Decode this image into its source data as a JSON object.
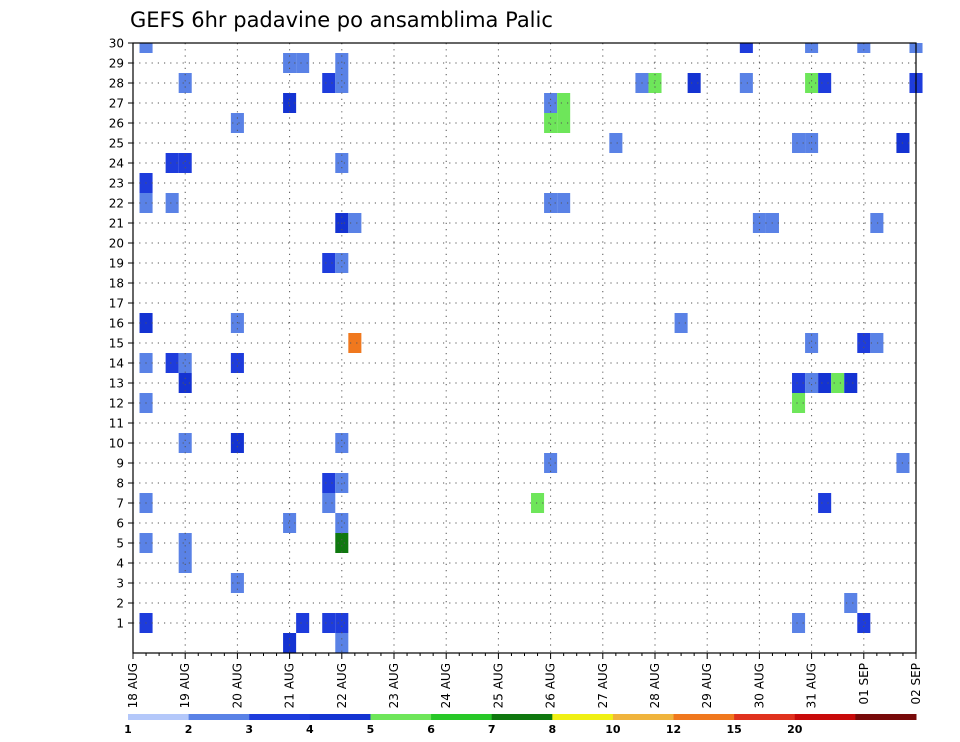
{
  "chart_data": {
    "type": "heatmap",
    "title": "GEFS 6hr padavine po ansamblima Palic",
    "xlabel": "",
    "ylabel": "",
    "x_ticks": [
      "18 AUG",
      "19 AUG",
      "20 AUG",
      "21 AUG",
      "22 AUG",
      "23 AUG",
      "24 AUG",
      "25 AUG",
      "26 AUG",
      "27 AUG",
      "28 AUG",
      "29 AUG",
      "30 AUG",
      "31 AUG",
      "01 SEP",
      "02 SEP"
    ],
    "y_ticks": [
      1,
      2,
      3,
      4,
      5,
      6,
      7,
      8,
      9,
      10,
      11,
      12,
      13,
      14,
      15,
      16,
      17,
      18,
      19,
      20,
      21,
      22,
      23,
      24,
      25,
      26,
      27,
      28,
      29,
      30
    ],
    "x_range_days": [
      0,
      15
    ],
    "y_range": [
      0,
      30
    ],
    "grid": true,
    "colorbar": {
      "bounds": [
        1,
        2,
        3,
        4,
        5,
        6,
        7,
        8,
        10,
        12,
        15,
        20
      ],
      "labels": [
        "1",
        "2",
        "3",
        "4",
        "5",
        "6",
        "7",
        "8",
        "10",
        "12",
        "15",
        "20"
      ],
      "colors": [
        "#b4c8fa",
        "#5a82e6",
        "#1e3cdc",
        "#1433d2",
        "#6ee65a",
        "#28c828",
        "#0f780f",
        "#f0f014",
        "#f0b43c",
        "#f0781e",
        "#e0321e",
        "#c80a0a",
        "#780a0a"
      ]
    },
    "points": [
      {
        "day": 0.25,
        "member": 30,
        "level": 1
      },
      {
        "day": 11.75,
        "member": 30,
        "level": 2
      },
      {
        "day": 13.0,
        "member": 30,
        "level": 1
      },
      {
        "day": 14.0,
        "member": 30,
        "level": 1
      },
      {
        "day": 15.0,
        "member": 30,
        "level": 1
      },
      {
        "day": 3.0,
        "member": 29,
        "level": 1
      },
      {
        "day": 3.25,
        "member": 29,
        "level": 1
      },
      {
        "day": 4.0,
        "member": 29,
        "level": 1
      },
      {
        "day": 1.0,
        "member": 28,
        "level": 1
      },
      {
        "day": 3.75,
        "member": 28,
        "level": 2
      },
      {
        "day": 4.0,
        "member": 28,
        "level": 1
      },
      {
        "day": 9.75,
        "member": 28,
        "level": 1
      },
      {
        "day": 10.0,
        "member": 28,
        "level": 4
      },
      {
        "day": 10.75,
        "member": 28,
        "level": 3
      },
      {
        "day": 11.75,
        "member": 28,
        "level": 1
      },
      {
        "day": 13.0,
        "member": 28,
        "level": 4
      },
      {
        "day": 13.25,
        "member": 28,
        "level": 2
      },
      {
        "day": 15.0,
        "member": 28,
        "level": 2
      },
      {
        "day": 3.0,
        "member": 27,
        "level": 3
      },
      {
        "day": 8.0,
        "member": 27,
        "level": 1
      },
      {
        "day": 8.25,
        "member": 27,
        "level": 4
      },
      {
        "day": 2.0,
        "member": 26,
        "level": 1
      },
      {
        "day": 8.0,
        "member": 26,
        "level": 4
      },
      {
        "day": 8.25,
        "member": 26,
        "level": 4
      },
      {
        "day": 9.25,
        "member": 25,
        "level": 1
      },
      {
        "day": 12.75,
        "member": 25,
        "level": 1
      },
      {
        "day": 13.0,
        "member": 25,
        "level": 1
      },
      {
        "day": 14.75,
        "member": 25,
        "level": 3
      },
      {
        "day": 0.75,
        "member": 24,
        "level": 2
      },
      {
        "day": 1.0,
        "member": 24,
        "level": 2
      },
      {
        "day": 4.0,
        "member": 24,
        "level": 1
      },
      {
        "day": 0.25,
        "member": 23,
        "level": 2
      },
      {
        "day": 0.25,
        "member": 22,
        "level": 1
      },
      {
        "day": 0.75,
        "member": 22,
        "level": 1
      },
      {
        "day": 8.0,
        "member": 22,
        "level": 1
      },
      {
        "day": 8.25,
        "member": 22,
        "level": 1
      },
      {
        "day": 4.0,
        "member": 21,
        "level": 3
      },
      {
        "day": 4.25,
        "member": 21,
        "level": 1
      },
      {
        "day": 12.0,
        "member": 21,
        "level": 1
      },
      {
        "day": 12.25,
        "member": 21,
        "level": 1
      },
      {
        "day": 14.25,
        "member": 21,
        "level": 1
      },
      {
        "day": 3.75,
        "member": 19,
        "level": 2
      },
      {
        "day": 4.0,
        "member": 19,
        "level": 1
      },
      {
        "day": 10.5,
        "member": 16,
        "level": 1
      },
      {
        "day": 0.25,
        "member": 16,
        "level": 3
      },
      {
        "day": 2.0,
        "member": 16,
        "level": 1
      },
      {
        "day": 4.25,
        "member": 15,
        "level": 9
      },
      {
        "day": 13.0,
        "member": 15,
        "level": 1
      },
      {
        "day": 14.0,
        "member": 15,
        "level": 2
      },
      {
        "day": 14.25,
        "member": 15,
        "level": 1
      },
      {
        "day": 0.25,
        "member": 14,
        "level": 1
      },
      {
        "day": 0.75,
        "member": 14,
        "level": 2
      },
      {
        "day": 1.0,
        "member": 14,
        "level": 1
      },
      {
        "day": 2.0,
        "member": 14,
        "level": 2
      },
      {
        "day": 1.0,
        "member": 13,
        "level": 3
      },
      {
        "day": 12.75,
        "member": 13,
        "level": 2
      },
      {
        "day": 13.0,
        "member": 13,
        "level": 1
      },
      {
        "day": 13.25,
        "member": 13,
        "level": 3
      },
      {
        "day": 13.5,
        "member": 13,
        "level": 4
      },
      {
        "day": 13.75,
        "member": 13,
        "level": 3
      },
      {
        "day": 0.25,
        "member": 12,
        "level": 1
      },
      {
        "day": 12.75,
        "member": 12,
        "level": 4
      },
      {
        "day": 1.0,
        "member": 10,
        "level": 1
      },
      {
        "day": 2.0,
        "member": 10,
        "level": 3
      },
      {
        "day": 4.0,
        "member": 10,
        "level": 1
      },
      {
        "day": 8.0,
        "member": 9,
        "level": 1
      },
      {
        "day": 14.75,
        "member": 9,
        "level": 1
      },
      {
        "day": 3.75,
        "member": 8,
        "level": 2
      },
      {
        "day": 4.0,
        "member": 8,
        "level": 1
      },
      {
        "day": 0.25,
        "member": 7,
        "level": 1
      },
      {
        "day": 3.75,
        "member": 7,
        "level": 1
      },
      {
        "day": 7.75,
        "member": 7,
        "level": 4
      },
      {
        "day": 13.25,
        "member": 7,
        "level": 2
      },
      {
        "day": 3.0,
        "member": 6,
        "level": 1
      },
      {
        "day": 4.0,
        "member": 6,
        "level": 1
      },
      {
        "day": 0.25,
        "member": 5,
        "level": 1
      },
      {
        "day": 1.0,
        "member": 5,
        "level": 1
      },
      {
        "day": 4.0,
        "member": 5,
        "level": 6
      },
      {
        "day": 1.0,
        "member": 4,
        "level": 1
      },
      {
        "day": 2.0,
        "member": 3,
        "level": 1
      },
      {
        "day": 13.75,
        "member": 2,
        "level": 1
      },
      {
        "day": 0.25,
        "member": 1,
        "level": 2
      },
      {
        "day": 3.25,
        "member": 1,
        "level": 2
      },
      {
        "day": 3.75,
        "member": 1,
        "level": 2
      },
      {
        "day": 4.0,
        "member": 1,
        "level": 2
      },
      {
        "day": 12.75,
        "member": 1,
        "level": 1
      },
      {
        "day": 14.0,
        "member": 1,
        "level": 2
      },
      {
        "day": 3.0,
        "member": 0,
        "level": 3
      },
      {
        "day": 4.0,
        "member": 0,
        "level": 1
      }
    ]
  }
}
